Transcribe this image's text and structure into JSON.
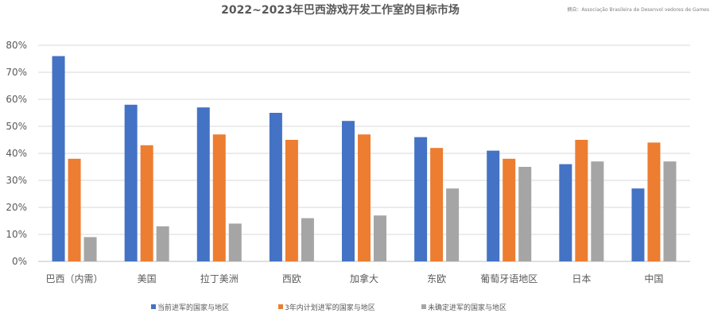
{
  "chart_data": {
    "type": "bar",
    "title": "2022~2023年巴西游戏开发工作室的目标市场",
    "source_note": "摘自：Associação Brasileira de Desenvol vedores de Games",
    "categories": [
      "巴西（内需）",
      "美国",
      "拉丁美洲",
      "西欧",
      "加拿大",
      "东欧",
      "葡萄牙语地区",
      "日本",
      "中国"
    ],
    "series": [
      {
        "name": "当前进军的国家与地区",
        "color": "#4472c4",
        "values": [
          76,
          58,
          57,
          55,
          52,
          46,
          41,
          36,
          27
        ]
      },
      {
        "name": "3年内计划进军的国家与地区",
        "color": "#ed7d31",
        "values": [
          38,
          43,
          47,
          45,
          47,
          42,
          38,
          45,
          44
        ]
      },
      {
        "name": "未确定进军的国家与地区",
        "color": "#a5a5a5",
        "values": [
          9,
          13,
          14,
          16,
          17,
          27,
          35,
          37,
          37
        ]
      }
    ],
    "yticks": [
      "0%",
      "10%",
      "20%",
      "30%",
      "40%",
      "50%",
      "60%",
      "70%",
      "80%"
    ],
    "ylim": [
      0,
      80
    ],
    "grid": true,
    "legend_position": "bottom"
  }
}
